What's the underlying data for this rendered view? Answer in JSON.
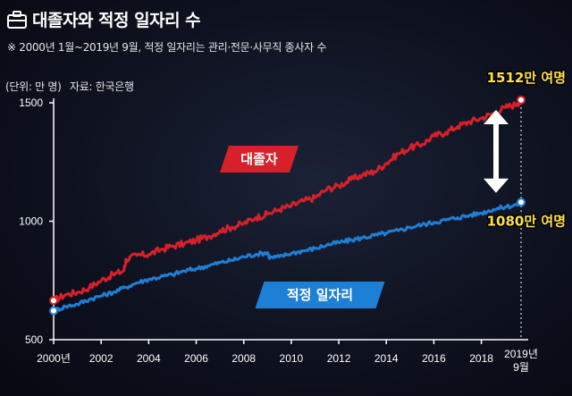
{
  "title": "대졸자와 적정 일자리 수",
  "subtitle": "※ 2000년 1월~2019년 9월, 적정 일자리는 관리·전문·사무직 종사자 수",
  "unit": "(단위: 만 명)",
  "source": "자료: 한국은행",
  "colors": {
    "grad": "#d8202a",
    "jobs": "#1e7fd6",
    "highlight": "#ffe24a"
  },
  "chart_data": {
    "type": "line",
    "ylim": [
      500,
      1500
    ],
    "yticks": [
      "500",
      "1000",
      "1500"
    ],
    "xticks": [
      "2000년",
      "2002",
      "2004",
      "2006",
      "2008",
      "2010",
      "2012",
      "2014",
      "2016",
      "2018",
      "2019년",
      "9월"
    ],
    "series": [
      {
        "name": "대졸자",
        "color": "#d8202a",
        "points": [
          [
            2000.0,
            665
          ],
          [
            2000.5,
            690
          ],
          [
            2001.0,
            700
          ],
          [
            2001.5,
            720
          ],
          [
            2002.0,
            750
          ],
          [
            2002.5,
            775
          ],
          [
            2002.95,
            790
          ],
          [
            2003.05,
            840
          ],
          [
            2003.5,
            855
          ],
          [
            2004.0,
            860
          ],
          [
            2004.5,
            880
          ],
          [
            2005.0,
            895
          ],
          [
            2005.5,
            905
          ],
          [
            2006.0,
            920
          ],
          [
            2006.5,
            935
          ],
          [
            2007.0,
            960
          ],
          [
            2007.5,
            975
          ],
          [
            2008.0,
            990
          ],
          [
            2008.5,
            1015
          ],
          [
            2009.0,
            1030
          ],
          [
            2009.5,
            1050
          ],
          [
            2010.0,
            1065
          ],
          [
            2010.5,
            1085
          ],
          [
            2011.0,
            1100
          ],
          [
            2011.5,
            1135
          ],
          [
            2012.0,
            1150
          ],
          [
            2012.5,
            1175
          ],
          [
            2013.0,
            1195
          ],
          [
            2013.5,
            1210
          ],
          [
            2014.0,
            1245
          ],
          [
            2014.5,
            1285
          ],
          [
            2015.0,
            1310
          ],
          [
            2015.5,
            1325
          ],
          [
            2016.0,
            1360
          ],
          [
            2016.5,
            1375
          ],
          [
            2017.0,
            1400
          ],
          [
            2017.5,
            1420
          ],
          [
            2018.0,
            1435
          ],
          [
            2018.5,
            1455
          ],
          [
            2019.0,
            1480
          ],
          [
            2019.5,
            1495
          ],
          [
            2019.67,
            1512
          ]
        ]
      },
      {
        "name": "적정 일자리",
        "color": "#1e7fd6",
        "points": [
          [
            2000.0,
            622
          ],
          [
            2000.5,
            640
          ],
          [
            2001.0,
            650
          ],
          [
            2001.5,
            670
          ],
          [
            2002.0,
            685
          ],
          [
            2002.5,
            700
          ],
          [
            2003.0,
            720
          ],
          [
            2003.5,
            740
          ],
          [
            2004.0,
            755
          ],
          [
            2004.5,
            765
          ],
          [
            2005.0,
            775
          ],
          [
            2005.5,
            790
          ],
          [
            2006.0,
            800
          ],
          [
            2006.5,
            812
          ],
          [
            2007.0,
            825
          ],
          [
            2007.5,
            835
          ],
          [
            2008.0,
            850
          ],
          [
            2008.5,
            860
          ],
          [
            2009.0,
            868
          ],
          [
            2009.1,
            845
          ],
          [
            2009.5,
            850
          ],
          [
            2010.0,
            865
          ],
          [
            2010.5,
            875
          ],
          [
            2011.0,
            885
          ],
          [
            2011.5,
            900
          ],
          [
            2012.0,
            910
          ],
          [
            2012.5,
            920
          ],
          [
            2013.0,
            930
          ],
          [
            2013.5,
            940
          ],
          [
            2014.0,
            950
          ],
          [
            2014.5,
            960
          ],
          [
            2015.0,
            975
          ],
          [
            2015.5,
            985
          ],
          [
            2016.0,
            995
          ],
          [
            2016.5,
            1005
          ],
          [
            2017.0,
            1015
          ],
          [
            2017.5,
            1025
          ],
          [
            2018.0,
            1035
          ],
          [
            2018.5,
            1050
          ],
          [
            2019.0,
            1060
          ],
          [
            2019.5,
            1070
          ],
          [
            2019.67,
            1080
          ]
        ]
      }
    ],
    "annotations": {
      "grad_end": "1512만 여명",
      "jobs_end": "1080만 여명"
    }
  }
}
